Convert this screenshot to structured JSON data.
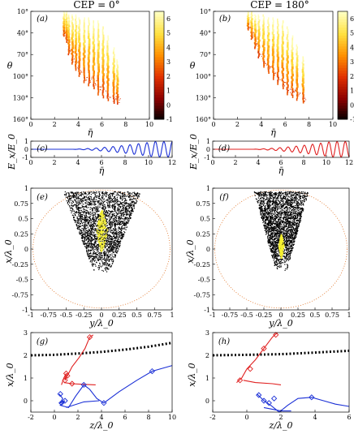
{
  "chart_data": [
    {
      "type": "heatmap",
      "panel_label": "(a)",
      "title": "CEP = 0°",
      "xlabel": "η̄",
      "ylabel": "θ",
      "xlim": [
        0,
        10
      ],
      "ylim": [
        0,
        180
      ],
      "x_ticks": [
        "0",
        "2",
        "4",
        "6",
        "8",
        "10"
      ],
      "y_ticks": [
        "10°",
        "40°",
        "70°",
        "100°",
        "130°",
        "160°"
      ],
      "colorbar": {
        "ticks": [
          "6",
          "5",
          "4",
          "3",
          "2",
          "1",
          "0",
          "-1"
        ],
        "range": [
          -1,
          6.5
        ],
        "colors": [
          "#000000",
          "#8b0000",
          "#e03000",
          "#ff9000",
          "#ffe040",
          "#ffffc0"
        ]
      },
      "streaks": [
        {
          "x": 2.8,
          "y0": 0,
          "y1": 40
        },
        {
          "x": 3.0,
          "y0": 0,
          "y1": 50
        },
        {
          "x": 3.2,
          "y0": 5,
          "y1": 70
        },
        {
          "x": 3.5,
          "y0": 5,
          "y1": 85
        },
        {
          "x": 3.8,
          "y0": 5,
          "y1": 95
        },
        {
          "x": 4.1,
          "y0": 10,
          "y1": 105
        },
        {
          "x": 4.5,
          "y0": 10,
          "y1": 115
        },
        {
          "x": 4.9,
          "y0": 10,
          "y1": 120
        },
        {
          "x": 5.3,
          "y0": 15,
          "y1": 125
        },
        {
          "x": 5.7,
          "y0": 15,
          "y1": 135
        },
        {
          "x": 6.1,
          "y0": 25,
          "y1": 140
        },
        {
          "x": 6.5,
          "y0": 40,
          "y1": 145
        },
        {
          "x": 7.0,
          "y0": 60,
          "y1": 150
        },
        {
          "x": 7.3,
          "y0": 80,
          "y1": 152
        }
      ]
    },
    {
      "type": "heatmap",
      "panel_label": "(b)",
      "title": "CEP = 180°",
      "xlabel": "η̄",
      "ylabel": "θ",
      "xlim": [
        0,
        10
      ],
      "ylim": [
        0,
        180
      ],
      "x_ticks": [
        "0",
        "2",
        "4",
        "6",
        "8",
        "10"
      ],
      "y_ticks": [
        "10°",
        "40°",
        "70°",
        "100°",
        "130°",
        "160°"
      ],
      "colorbar": {
        "ticks": [
          "6",
          "5",
          "4",
          "3",
          "2",
          "1",
          "0",
          "-1"
        ],
        "range": [
          -1,
          6.5
        ],
        "colors": [
          "#000000",
          "#8b0000",
          "#e03000",
          "#ff9000",
          "#ffe040",
          "#ffffc0"
        ]
      },
      "streaks": [
        {
          "x": 2.9,
          "y0": 0,
          "y1": 30
        },
        {
          "x": 3.2,
          "y0": 0,
          "y1": 45
        },
        {
          "x": 3.5,
          "y0": 5,
          "y1": 60
        },
        {
          "x": 3.8,
          "y0": 5,
          "y1": 75
        },
        {
          "x": 4.2,
          "y0": 5,
          "y1": 90
        },
        {
          "x": 4.6,
          "y0": 10,
          "y1": 100
        },
        {
          "x": 5.0,
          "y0": 10,
          "y1": 110
        },
        {
          "x": 5.4,
          "y0": 12,
          "y1": 118
        },
        {
          "x": 5.8,
          "y0": 15,
          "y1": 125
        },
        {
          "x": 6.2,
          "y0": 25,
          "y1": 135
        },
        {
          "x": 6.6,
          "y0": 40,
          "y1": 140
        },
        {
          "x": 7.0,
          "y0": 55,
          "y1": 145
        },
        {
          "x": 7.5,
          "y0": 75,
          "y1": 150
        }
      ]
    },
    {
      "type": "line",
      "panel_label": "(c)",
      "xlabel": "η̄",
      "ylabel": "E_x/E_0",
      "xlim": [
        0,
        12
      ],
      "ylim": [
        -1,
        1
      ],
      "x_ticks": [
        "0",
        "2",
        "4",
        "6",
        "8",
        "10",
        "12"
      ],
      "y_ticks": [
        "1",
        "0",
        "-1"
      ],
      "color": "#1a2fd6",
      "pulse": {
        "start": 3.2,
        "end": 12,
        "period": 0.72,
        "cep_deg": 0,
        "grow_until": 10.5
      }
    },
    {
      "type": "line",
      "panel_label": "(d)",
      "xlabel": "η̄",
      "ylabel": "E_x/E_0",
      "xlim": [
        0,
        12
      ],
      "ylim": [
        -1,
        1
      ],
      "x_ticks": [
        "0",
        "2",
        "4",
        "6",
        "8",
        "10",
        "12"
      ],
      "y_ticks": [
        "1",
        "0",
        "-1"
      ],
      "color": "#e02020",
      "pulse": {
        "start": 3.2,
        "end": 12,
        "period": 0.72,
        "cep_deg": 180,
        "grow_until": 10.5
      }
    },
    {
      "type": "scatter",
      "panel_label": "(e)",
      "xlabel": "y/λ_0",
      "ylabel": "x/λ_0",
      "xlim": [
        -1,
        1
      ],
      "ylim": [
        -1,
        1
      ],
      "x_ticks": [
        "-1",
        "-0.75",
        "-0.5",
        "-0.25",
        "0",
        "0.25",
        "0.5",
        "0.75",
        "1"
      ],
      "y_ticks": [
        "1",
        "0.75",
        "0.5",
        "0.25",
        "0",
        "-0.25",
        "-0.5",
        "-0.75",
        "-1"
      ],
      "cone": {
        "top_y": 0.95,
        "bottom_y": -0.4,
        "half_width_top": 0.55,
        "half_width_bottom": 0.1
      },
      "core": {
        "x": 0,
        "y": 0.3,
        "half_width": 0.08,
        "half_height": 0.35
      },
      "circle_color": "#e07020"
    },
    {
      "type": "scatter",
      "panel_label": "(f)",
      "xlabel": "y/λ_0",
      "ylabel": "x/λ_0",
      "xlim": [
        -1,
        1
      ],
      "ylim": [
        -1,
        1
      ],
      "x_ticks": [
        "-1",
        "-0.75",
        "-0.5",
        "-0.25",
        "0",
        "0.25",
        "0.5",
        "0.75",
        "1"
      ],
      "y_ticks": [
        "1",
        "0.75",
        "0.5",
        "0.25",
        "0",
        "-0.25",
        "-0.5",
        "-0.75",
        "-1"
      ],
      "cone": {
        "top_y": 0.95,
        "bottom_y": -0.35,
        "half_width_top": 0.4,
        "half_width_bottom": 0.08
      },
      "core": {
        "x": 0,
        "y": 0.05,
        "half_width": 0.04,
        "half_height": 0.2
      },
      "circle_color": "#e07020"
    },
    {
      "type": "line",
      "panel_label": "(g)",
      "xlabel": "z/λ_0",
      "ylabel": "x/λ_0",
      "xlim": [
        -2,
        10
      ],
      "ylim": [
        -0.5,
        3
      ],
      "x_ticks": [
        "-2",
        "0",
        "2",
        "4",
        "6",
        "8",
        "10"
      ],
      "y_ticks": [
        "3",
        "2",
        "1",
        "0"
      ],
      "series": [
        {
          "color": "#000000",
          "style": "dotted",
          "points": [
            [
              -2,
              2.0
            ],
            [
              0,
              2.02
            ],
            [
              2,
              2.08
            ],
            [
              4,
              2.15
            ],
            [
              6,
              2.25
            ],
            [
              8,
              2.38
            ],
            [
              10,
              2.55
            ]
          ]
        },
        {
          "color": "#e02020",
          "style": "solid",
          "points": [
            [
              0.6,
              0.7
            ],
            [
              0.8,
              1.0
            ],
            [
              1.0,
              1.2
            ],
            [
              0.9,
              0.9
            ],
            [
              1.1,
              1.1
            ],
            [
              1.5,
              1.5
            ],
            [
              2.1,
              1.9
            ],
            [
              2.6,
              2.3
            ],
            [
              3.0,
              2.8
            ],
            [
              3.3,
              2.9
            ]
          ]
        },
        {
          "color": "#e02020",
          "style": "solid",
          "points": [
            [
              0.8,
              0.8
            ],
            [
              1.5,
              0.75
            ],
            [
              2.5,
              0.72
            ],
            [
              3.5,
              0.7
            ]
          ]
        },
        {
          "color": "#1a2fd6",
          "style": "solid",
          "points": [
            [
              0.4,
              0.3
            ],
            [
              0.7,
              0.1
            ],
            [
              0.5,
              -0.1
            ],
            [
              0.9,
              0.0
            ],
            [
              0.5,
              -0.2
            ],
            [
              1.2,
              -0.3
            ],
            [
              1.8,
              0.2
            ],
            [
              2.5,
              0.7
            ],
            [
              3.0,
              0.5
            ],
            [
              3.6,
              0.1
            ],
            [
              4.2,
              -0.1
            ],
            [
              5.5,
              0.4
            ],
            [
              7.0,
              0.9
            ],
            [
              8.3,
              1.3
            ],
            [
              10,
              1.55
            ]
          ]
        },
        {
          "color": "#1a2fd6",
          "style": "solid",
          "points": [
            [
              1.0,
              -0.3
            ],
            [
              2.5,
              -0.05
            ],
            [
              3.8,
              0.0
            ]
          ]
        }
      ],
      "markers_red": [
        [
          1.0,
          1.2
        ],
        [
          0.9,
          0.9
        ],
        [
          1.1,
          1.1
        ],
        [
          1.5,
          0.75
        ],
        [
          3.0,
          2.8
        ]
      ],
      "markers_blue": [
        [
          0.5,
          0.3
        ],
        [
          0.6,
          -0.1
        ],
        [
          0.9,
          0.0
        ],
        [
          2.5,
          0.7
        ],
        [
          4.2,
          -0.1
        ],
        [
          8.3,
          1.3
        ]
      ]
    },
    {
      "type": "line",
      "panel_label": "(h)",
      "xlabel": "z/λ_0",
      "ylabel": "x/λ_0",
      "xlim": [
        -2,
        6
      ],
      "ylim": [
        -0.5,
        3
      ],
      "x_ticks": [
        "-2",
        "0",
        "2",
        "4",
        "6"
      ],
      "y_ticks": [
        "3",
        "2",
        "1",
        "0"
      ],
      "series": [
        {
          "color": "#000000",
          "style": "dotted",
          "points": [
            [
              -2,
              2.0
            ],
            [
              0,
              2.02
            ],
            [
              2,
              2.05
            ],
            [
              4,
              2.12
            ],
            [
              6,
              2.2
            ]
          ]
        },
        {
          "color": "#e02020",
          "style": "solid",
          "points": [
            [
              -0.6,
              0.8
            ],
            [
              -0.3,
              1.0
            ],
            [
              0,
              1.4
            ],
            [
              0.5,
              1.8
            ],
            [
              1.0,
              2.3
            ],
            [
              1.5,
              2.8
            ],
            [
              1.8,
              3.0
            ]
          ]
        },
        {
          "color": "#e02020",
          "style": "solid",
          "points": [
            [
              -0.2,
              0.9
            ],
            [
              0.5,
              0.8
            ],
            [
              1.5,
              0.75
            ],
            [
              2.0,
              0.7
            ]
          ]
        },
        {
          "color": "#1a2fd6",
          "style": "solid",
          "points": [
            [
              0.6,
              0.3
            ],
            [
              1.0,
              0.0
            ],
            [
              1.4,
              -0.2
            ],
            [
              1.9,
              -0.5
            ],
            [
              2.4,
              -0.2
            ],
            [
              3.0,
              0.1
            ],
            [
              3.8,
              0.15
            ],
            [
              4.5,
              0.0
            ],
            [
              5.2,
              -0.15
            ],
            [
              6.0,
              -0.25
            ]
          ]
        },
        {
          "color": "#1a2fd6",
          "style": "solid",
          "points": [
            [
              1.0,
              -0.3
            ],
            [
              2.0,
              -0.45
            ],
            [
              2.6,
              -0.45
            ]
          ]
        }
      ],
      "markers_red": [
        [
          -0.4,
          0.9
        ],
        [
          0.2,
          1.4
        ],
        [
          1.0,
          2.3
        ],
        [
          1.7,
          2.9
        ]
      ],
      "markers_blue": [
        [
          0.7,
          0.25
        ],
        [
          1.0,
          0.0
        ],
        [
          1.3,
          -0.1
        ],
        [
          1.6,
          0.1
        ],
        [
          3.8,
          0.15
        ]
      ]
    }
  ]
}
